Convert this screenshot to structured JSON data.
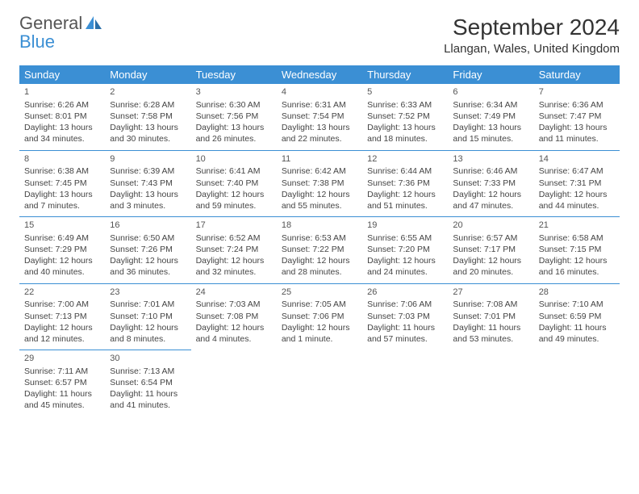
{
  "logo": {
    "general": "General",
    "blue": "Blue"
  },
  "title": "September 2024",
  "location": "Llangan, Wales, United Kingdom",
  "colors": {
    "header_bg": "#3b8fd4",
    "header_text": "#ffffff",
    "border": "#3b8fd4",
    "body_text": "#444444",
    "logo_gray": "#555555",
    "logo_blue": "#3b8fd4",
    "background": "#ffffff"
  },
  "weekdays": [
    "Sunday",
    "Monday",
    "Tuesday",
    "Wednesday",
    "Thursday",
    "Friday",
    "Saturday"
  ],
  "days": [
    {
      "n": 1,
      "sunrise": "6:26 AM",
      "sunset": "8:01 PM",
      "daylight": "13 hours and 34 minutes."
    },
    {
      "n": 2,
      "sunrise": "6:28 AM",
      "sunset": "7:58 PM",
      "daylight": "13 hours and 30 minutes."
    },
    {
      "n": 3,
      "sunrise": "6:30 AM",
      "sunset": "7:56 PM",
      "daylight": "13 hours and 26 minutes."
    },
    {
      "n": 4,
      "sunrise": "6:31 AM",
      "sunset": "7:54 PM",
      "daylight": "13 hours and 22 minutes."
    },
    {
      "n": 5,
      "sunrise": "6:33 AM",
      "sunset": "7:52 PM",
      "daylight": "13 hours and 18 minutes."
    },
    {
      "n": 6,
      "sunrise": "6:34 AM",
      "sunset": "7:49 PM",
      "daylight": "13 hours and 15 minutes."
    },
    {
      "n": 7,
      "sunrise": "6:36 AM",
      "sunset": "7:47 PM",
      "daylight": "13 hours and 11 minutes."
    },
    {
      "n": 8,
      "sunrise": "6:38 AM",
      "sunset": "7:45 PM",
      "daylight": "13 hours and 7 minutes."
    },
    {
      "n": 9,
      "sunrise": "6:39 AM",
      "sunset": "7:43 PM",
      "daylight": "13 hours and 3 minutes."
    },
    {
      "n": 10,
      "sunrise": "6:41 AM",
      "sunset": "7:40 PM",
      "daylight": "12 hours and 59 minutes."
    },
    {
      "n": 11,
      "sunrise": "6:42 AM",
      "sunset": "7:38 PM",
      "daylight": "12 hours and 55 minutes."
    },
    {
      "n": 12,
      "sunrise": "6:44 AM",
      "sunset": "7:36 PM",
      "daylight": "12 hours and 51 minutes."
    },
    {
      "n": 13,
      "sunrise": "6:46 AM",
      "sunset": "7:33 PM",
      "daylight": "12 hours and 47 minutes."
    },
    {
      "n": 14,
      "sunrise": "6:47 AM",
      "sunset": "7:31 PM",
      "daylight": "12 hours and 44 minutes."
    },
    {
      "n": 15,
      "sunrise": "6:49 AM",
      "sunset": "7:29 PM",
      "daylight": "12 hours and 40 minutes."
    },
    {
      "n": 16,
      "sunrise": "6:50 AM",
      "sunset": "7:26 PM",
      "daylight": "12 hours and 36 minutes."
    },
    {
      "n": 17,
      "sunrise": "6:52 AM",
      "sunset": "7:24 PM",
      "daylight": "12 hours and 32 minutes."
    },
    {
      "n": 18,
      "sunrise": "6:53 AM",
      "sunset": "7:22 PM",
      "daylight": "12 hours and 28 minutes."
    },
    {
      "n": 19,
      "sunrise": "6:55 AM",
      "sunset": "7:20 PM",
      "daylight": "12 hours and 24 minutes."
    },
    {
      "n": 20,
      "sunrise": "6:57 AM",
      "sunset": "7:17 PM",
      "daylight": "12 hours and 20 minutes."
    },
    {
      "n": 21,
      "sunrise": "6:58 AM",
      "sunset": "7:15 PM",
      "daylight": "12 hours and 16 minutes."
    },
    {
      "n": 22,
      "sunrise": "7:00 AM",
      "sunset": "7:13 PM",
      "daylight": "12 hours and 12 minutes."
    },
    {
      "n": 23,
      "sunrise": "7:01 AM",
      "sunset": "7:10 PM",
      "daylight": "12 hours and 8 minutes."
    },
    {
      "n": 24,
      "sunrise": "7:03 AM",
      "sunset": "7:08 PM",
      "daylight": "12 hours and 4 minutes."
    },
    {
      "n": 25,
      "sunrise": "7:05 AM",
      "sunset": "7:06 PM",
      "daylight": "12 hours and 1 minute."
    },
    {
      "n": 26,
      "sunrise": "7:06 AM",
      "sunset": "7:03 PM",
      "daylight": "11 hours and 57 minutes."
    },
    {
      "n": 27,
      "sunrise": "7:08 AM",
      "sunset": "7:01 PM",
      "daylight": "11 hours and 53 minutes."
    },
    {
      "n": 28,
      "sunrise": "7:10 AM",
      "sunset": "6:59 PM",
      "daylight": "11 hours and 49 minutes."
    },
    {
      "n": 29,
      "sunrise": "7:11 AM",
      "sunset": "6:57 PM",
      "daylight": "11 hours and 45 minutes."
    },
    {
      "n": 30,
      "sunrise": "7:13 AM",
      "sunset": "6:54 PM",
      "daylight": "11 hours and 41 minutes."
    }
  ],
  "labels": {
    "sunrise": "Sunrise:",
    "sunset": "Sunset:",
    "daylight": "Daylight:"
  }
}
